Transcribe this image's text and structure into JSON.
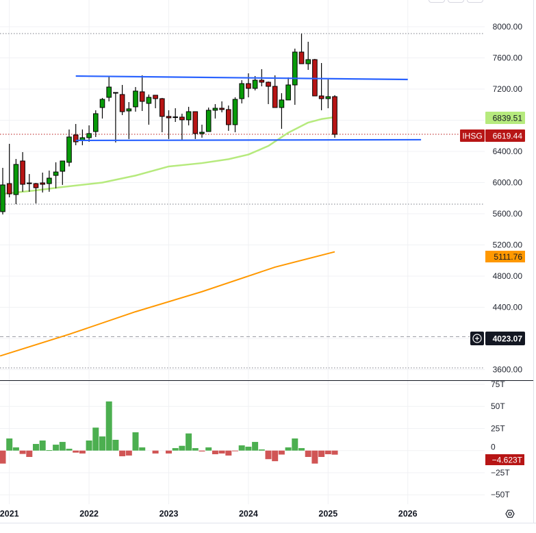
{
  "symbol": "IHSG",
  "last_price_label": "6619.44",
  "ma_label": "6839.51",
  "orange_label": "5111.76",
  "crosshair_label": "4023.07",
  "volume_label": "−4.623T",
  "colors": {
    "up": "#089a09",
    "down": "#b71515",
    "ma": "#b6ea7d",
    "orange": "#ff9800",
    "trendline": "#2962ff",
    "vol_up": "#4caf50",
    "vol_down": "#d05555",
    "crosshair_bg": "#131722"
  },
  "chart_data": {
    "type": "candlestick",
    "interval": "monthly",
    "x_tick_labels": [
      "2021",
      "2022",
      "2023",
      "2024",
      "2025",
      "2026"
    ],
    "x_tick_index": [
      1,
      13,
      25,
      37,
      49,
      61
    ],
    "price_axis": {
      "ticks": [
        "8000.00",
        "7600.00",
        "7200.00",
        "6400.00",
        "6000.00",
        "5600.00",
        "5200.00",
        "4800.00",
        "4400.00",
        "3600.00"
      ],
      "tick_values": [
        8000,
        7600,
        7200,
        6400,
        6000,
        5600,
        5200,
        4800,
        4400,
        3600
      ],
      "ylim": [
        3450,
        8080
      ]
    },
    "volume_axis": {
      "ticks": [
        "75T",
        "50T",
        "25T",
        "0",
        "−25T",
        "−50T"
      ],
      "tick_values": [
        75,
        50,
        25,
        0,
        -25,
        -50
      ]
    },
    "ohlc": [
      [
        5627,
        6189,
        5591,
        5970
      ],
      [
        5987,
        6497,
        5811,
        5855
      ],
      [
        5846,
        6303,
        5723,
        6233
      ],
      [
        6277,
        6391,
        5882,
        5978
      ],
      [
        5995,
        6110,
        5882,
        5990
      ],
      [
        5987,
        5996,
        5732,
        5934
      ],
      [
        5996,
        6128,
        5873,
        5978
      ],
      [
        5987,
        6154,
        5882,
        6057
      ],
      [
        6092,
        6260,
        5926,
        6136
      ],
      [
        6145,
        6277,
        5970,
        6277
      ],
      [
        6260,
        6681,
        6207,
        6585
      ],
      [
        6611,
        6752,
        6479,
        6523
      ],
      [
        6541,
        6681,
        6479,
        6576
      ],
      [
        6576,
        6734,
        6523,
        6629
      ],
      [
        6655,
        6928,
        6585,
        6884
      ],
      [
        6963,
        7086,
        6822,
        7068
      ],
      [
        7094,
        7358,
        7042,
        7226
      ],
      [
        7156,
        7156,
        6515,
        7148
      ],
      [
        7130,
        7253,
        6866,
        6910
      ],
      [
        6919,
        7033,
        6559,
        6946
      ],
      [
        6972,
        7226,
        6910,
        7174
      ],
      [
        7165,
        7376,
        6919,
        7042
      ],
      [
        7016,
        7130,
        6743,
        7094
      ],
      [
        7121,
        7121,
        6954,
        7077
      ],
      [
        7077,
        7086,
        6646,
        6849
      ],
      [
        6849,
        6928,
        6559,
        6831
      ],
      [
        6843,
        6954,
        6778,
        6840
      ],
      [
        6840,
        6884,
        6541,
        6805
      ],
      [
        6805,
        6972,
        6734,
        6910
      ],
      [
        6910,
        6910,
        6559,
        6629
      ],
      [
        6629,
        6743,
        6576,
        6646
      ],
      [
        6655,
        6963,
        6655,
        6928
      ],
      [
        6928,
        7007,
        6822,
        6954
      ],
      [
        6954,
        7042,
        6901,
        6937
      ],
      [
        6937,
        6989,
        6664,
        6743
      ],
      [
        6743,
        7094,
        6646,
        7068
      ],
      [
        7077,
        7314,
        7016,
        7270
      ],
      [
        7270,
        7402,
        7094,
        7209
      ],
      [
        7209,
        7367,
        7183,
        7314
      ],
      [
        7314,
        7455,
        7235,
        7288
      ],
      [
        7288,
        7297,
        7007,
        7235
      ],
      [
        7235,
        7376,
        6963,
        6963
      ],
      [
        6963,
        7147,
        6690,
        7060
      ],
      [
        7060,
        7350,
        7060,
        7253
      ],
      [
        7253,
        7719,
        6998,
        7675
      ],
      [
        7675,
        7912,
        7525,
        7525
      ],
      [
        7525,
        7807,
        7446,
        7578
      ],
      [
        7578,
        7587,
        7112,
        7112
      ],
      [
        7112,
        7534,
        6928,
        7077
      ],
      [
        7077,
        7323,
        6954,
        7103
      ],
      [
        7103,
        7121,
        6576,
        6619.44
      ]
    ],
    "moving_average": {
      "index": [
        0,
        5,
        9,
        15,
        20,
        25,
        30,
        34,
        37,
        40,
        43,
        46,
        48,
        50
      ],
      "values": [
        5855,
        5900,
        5943,
        6000,
        6090,
        6207,
        6250,
        6300,
        6360,
        6470,
        6640,
        6770,
        6815,
        6839.51
      ]
    },
    "orange_line": {
      "index": [
        -0.4,
        10,
        20,
        30,
        41,
        50
      ],
      "values": [
        3775,
        4053,
        4343,
        4600,
        4915,
        5111.76
      ]
    },
    "trendlines": [
      {
        "from_index": 11,
        "from_value": 7367,
        "to_index": 61,
        "to_value": 7323
      },
      {
        "from_index": 11,
        "from_value": 6541,
        "to_index": 63,
        "to_value": 6550
      }
    ],
    "reference_levels": {
      "high": 7912,
      "low_dotted": [
        5723,
        3622
      ],
      "crosshair": 4023.07
    },
    "volume": [
      -14.7,
      13.7,
      3.6,
      -3.8,
      -7.2,
      7.5,
      11.4,
      0.5,
      6.7,
      9.8,
      2.1,
      -2.3,
      -3.3,
      11.4,
      26,
      16,
      55.6,
      12.2,
      -6.4,
      -5.6,
      20.7,
      3.6,
      0,
      -3.3,
      0,
      -3.3,
      2.8,
      5.4,
      19.4,
      2.8,
      -1,
      3.6,
      -4.1,
      -3.3,
      -5.6,
      -0.5,
      5.9,
      4.4,
      9.8,
      1.3,
      -9.7,
      -12,
      -4.5,
      3.6,
      13.7,
      2.8,
      -7.2,
      -14.7,
      -7.2,
      -4.1,
      -4.623
    ]
  }
}
